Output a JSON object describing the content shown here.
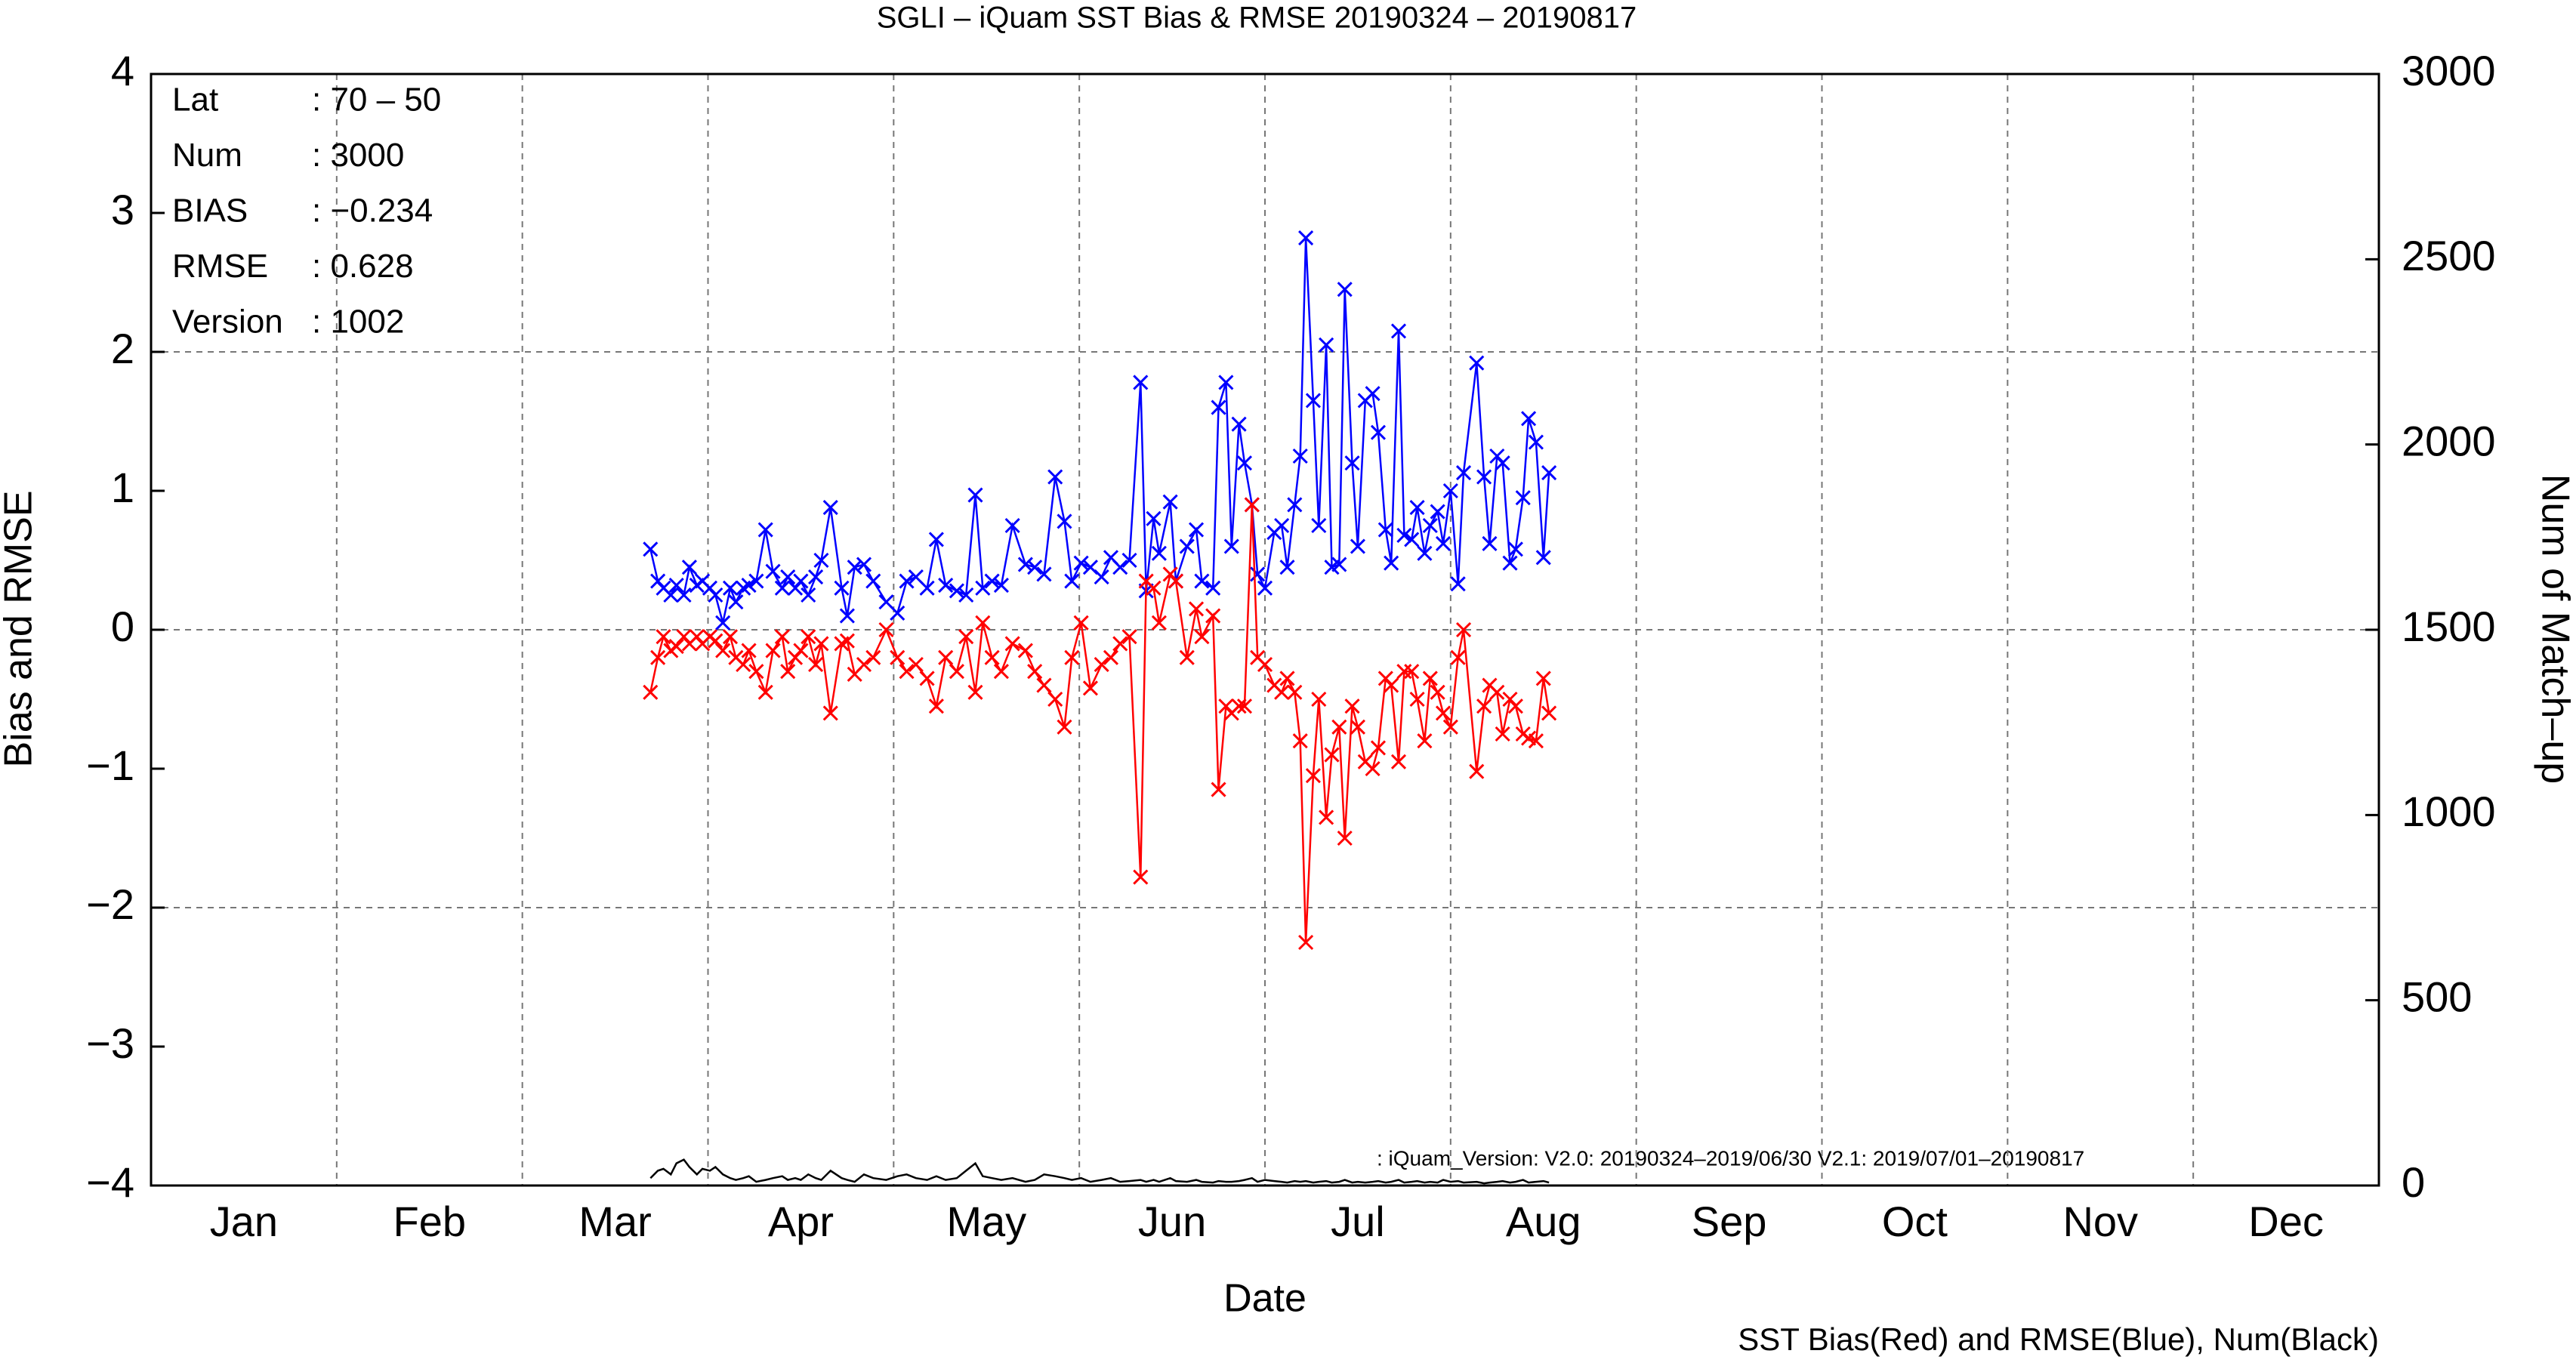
{
  "chart_data": {
    "type": "line",
    "title": "SGLI – iQuam  SST Bias & RMSE 20190324 – 20190817",
    "xlabel": "Date",
    "ylabel": "Bias and RMSE",
    "y2label": "Num of Match–up",
    "footer": "SST Bias(Red) and RMSE(Blue), Num(Black)",
    "annotation": ": iQuam_Version: V2.0: 20190324–2019/06/30 V2.1: 2019/07/01–20190817",
    "info": [
      [
        "Lat",
        ": 70 – 50"
      ],
      [
        "Num",
        ": 3000"
      ],
      [
        "BIAS",
        ": −0.234"
      ],
      [
        "RMSE",
        ": 0.628"
      ],
      [
        "Version",
        ": 1002"
      ]
    ],
    "xlim": [
      0,
      12
    ],
    "xticks": [
      {
        "value": 0.5,
        "label": "Jan"
      },
      {
        "value": 1.5,
        "label": "Feb"
      },
      {
        "value": 2.5,
        "label": "Mar"
      },
      {
        "value": 3.5,
        "label": "Apr"
      },
      {
        "value": 4.5,
        "label": "May"
      },
      {
        "value": 5.5,
        "label": "Jun"
      },
      {
        "value": 6.5,
        "label": "Jul"
      },
      {
        "value": 7.5,
        "label": "Aug"
      },
      {
        "value": 8.5,
        "label": "Sep"
      },
      {
        "value": 9.5,
        "label": "Oct"
      },
      {
        "value": 10.5,
        "label": "Nov"
      },
      {
        "value": 11.5,
        "label": "Dec"
      }
    ],
    "xgrid": [
      1,
      2,
      3,
      4,
      5,
      6,
      7,
      8,
      9,
      10,
      11
    ],
    "ylim": [
      -4,
      4
    ],
    "yticks": [
      {
        "value": -4,
        "label": "−4"
      },
      {
        "value": -3,
        "label": "−3"
      },
      {
        "value": -2,
        "label": "−2"
      },
      {
        "value": -1,
        "label": "−1"
      },
      0,
      1,
      2,
      3,
      4
    ],
    "ygrid": [
      -2,
      0,
      2
    ],
    "y2lim": [
      0,
      3000
    ],
    "y2ticks": [
      0,
      500,
      1000,
      1500,
      2000,
      2500,
      3000
    ],
    "x": [
      2.69,
      2.73,
      2.76,
      2.8,
      2.83,
      2.87,
      2.9,
      2.94,
      2.97,
      3.01,
      3.04,
      3.08,
      3.12,
      3.15,
      3.19,
      3.22,
      3.26,
      3.31,
      3.35,
      3.4,
      3.43,
      3.47,
      3.5,
      3.54,
      3.58,
      3.61,
      3.66,
      3.72,
      3.75,
      3.79,
      3.84,
      3.89,
      3.96,
      4.02,
      4.07,
      4.12,
      4.18,
      4.23,
      4.28,
      4.34,
      4.39,
      4.44,
      4.48,
      4.53,
      4.58,
      4.64,
      4.71,
      4.76,
      4.81,
      4.87,
      4.92,
      4.96,
      5.01,
      5.06,
      5.12,
      5.17,
      5.22,
      5.27,
      5.33,
      5.36,
      5.4,
      5.43,
      5.49,
      5.52,
      5.58,
      5.63,
      5.66,
      5.72,
      5.75,
      5.79,
      5.82,
      5.86,
      5.89,
      5.93,
      5.96,
      6.0,
      6.05,
      6.09,
      6.12,
      6.16,
      6.19,
      6.22,
      6.26,
      6.29,
      6.33,
      6.36,
      6.4,
      6.43,
      6.47,
      6.5,
      6.54,
      6.58,
      6.61,
      6.65,
      6.68,
      6.72,
      6.75,
      6.79,
      6.82,
      6.86,
      6.89,
      6.93,
      6.96,
      7.0,
      7.04,
      7.07,
      7.14,
      7.18,
      7.21,
      7.25,
      7.28,
      7.32,
      7.35,
      7.39,
      7.42,
      7.46,
      7.5,
      7.53
    ],
    "series": [
      {
        "name": "RMSE",
        "color": "#0000ff",
        "marker": true,
        "values": [
          0.58,
          0.35,
          0.3,
          0.25,
          0.32,
          0.25,
          0.45,
          0.32,
          0.35,
          0.3,
          0.25,
          0.05,
          0.3,
          0.2,
          0.3,
          0.32,
          0.35,
          0.72,
          0.42,
          0.3,
          0.38,
          0.3,
          0.35,
          0.25,
          0.38,
          0.5,
          0.88,
          0.3,
          0.1,
          0.45,
          0.47,
          0.35,
          0.2,
          0.12,
          0.35,
          0.38,
          0.3,
          0.65,
          0.32,
          0.28,
          0.25,
          0.97,
          0.3,
          0.35,
          0.32,
          0.75,
          0.47,
          0.45,
          0.4,
          1.1,
          0.78,
          0.35,
          0.48,
          0.45,
          0.38,
          0.52,
          0.45,
          0.5,
          1.78,
          0.28,
          0.8,
          0.55,
          0.92,
          0.35,
          0.6,
          0.72,
          0.35,
          0.3,
          1.6,
          1.78,
          0.6,
          1.48,
          1.2,
          0.9,
          0.4,
          0.3,
          0.7,
          0.75,
          0.45,
          0.9,
          1.25,
          2.82,
          1.65,
          0.75,
          2.05,
          0.45,
          0.47,
          2.45,
          1.2,
          0.6,
          1.65,
          1.7,
          1.42,
          0.72,
          0.48,
          2.15,
          0.68,
          0.65,
          0.88,
          0.55,
          0.75,
          0.85,
          0.62,
          1.0,
          0.33,
          1.13,
          1.92,
          1.1,
          0.62,
          1.25,
          1.2,
          0.48,
          0.58,
          0.95,
          1.52,
          1.35,
          0.52,
          1.13
        ]
      },
      {
        "name": "Bias",
        "color": "#ff0000",
        "marker": true,
        "values": [
          -0.45,
          -0.2,
          -0.05,
          -0.15,
          -0.12,
          -0.05,
          -0.1,
          -0.05,
          -0.1,
          -0.05,
          -0.08,
          -0.15,
          -0.05,
          -0.2,
          -0.25,
          -0.15,
          -0.3,
          -0.45,
          -0.15,
          -0.05,
          -0.3,
          -0.2,
          -0.15,
          -0.05,
          -0.25,
          -0.1,
          -0.6,
          -0.1,
          -0.08,
          -0.32,
          -0.25,
          -0.2,
          0,
          -0.2,
          -0.3,
          -0.25,
          -0.35,
          -0.55,
          -0.2,
          -0.3,
          -0.05,
          -0.45,
          0.05,
          -0.2,
          -0.3,
          -0.1,
          -0.15,
          -0.3,
          -0.4,
          -0.5,
          -0.7,
          -0.2,
          0.05,
          -0.42,
          -0.25,
          -0.2,
          -0.1,
          -0.05,
          -1.78,
          0.35,
          0.3,
          0.05,
          0.4,
          0.35,
          -0.2,
          0.15,
          -0.05,
          0.1,
          -1.15,
          -0.55,
          -0.6,
          -0.55,
          -0.55,
          0.9,
          -0.2,
          -0.25,
          -0.4,
          -0.45,
          -0.35,
          -0.45,
          -0.8,
          -2.25,
          -1.05,
          -0.5,
          -1.35,
          -0.9,
          -0.7,
          -1.5,
          -0.55,
          -0.7,
          -0.95,
          -1.0,
          -0.85,
          -0.35,
          -0.4,
          -0.95,
          -0.3,
          -0.3,
          -0.5,
          -0.8,
          -0.35,
          -0.45,
          -0.6,
          -0.7,
          -0.2,
          0,
          -1.02,
          -0.55,
          -0.4,
          -0.45,
          -0.75,
          -0.5,
          -0.55,
          -0.75,
          -0.78,
          -0.8,
          -0.35,
          -0.6
        ]
      },
      {
        "name": "Num",
        "color": "#000000",
        "marker": false,
        "axis": "y2",
        "values": [
          20,
          40,
          45,
          30,
          60,
          70,
          50,
          30,
          45,
          40,
          50,
          30,
          20,
          15,
          20,
          25,
          10,
          15,
          20,
          25,
          15,
          20,
          15,
          30,
          20,
          15,
          40,
          20,
          15,
          10,
          30,
          20,
          15,
          25,
          30,
          20,
          15,
          25,
          15,
          20,
          40,
          60,
          25,
          20,
          15,
          20,
          10,
          15,
          30,
          25,
          20,
          15,
          20,
          10,
          15,
          20,
          10,
          12,
          15,
          10,
          15,
          10,
          20,
          12,
          10,
          15,
          10,
          8,
          12,
          10,
          10,
          12,
          15,
          20,
          10,
          15,
          12,
          10,
          8,
          12,
          10,
          12,
          8,
          10,
          12,
          8,
          10,
          15,
          8,
          10,
          8,
          10,
          12,
          8,
          10,
          15,
          8,
          10,
          12,
          8,
          10,
          8,
          15,
          10,
          12,
          8,
          10,
          6,
          8,
          10,
          12,
          8,
          10,
          15,
          8,
          10,
          12,
          8
        ]
      }
    ]
  }
}
